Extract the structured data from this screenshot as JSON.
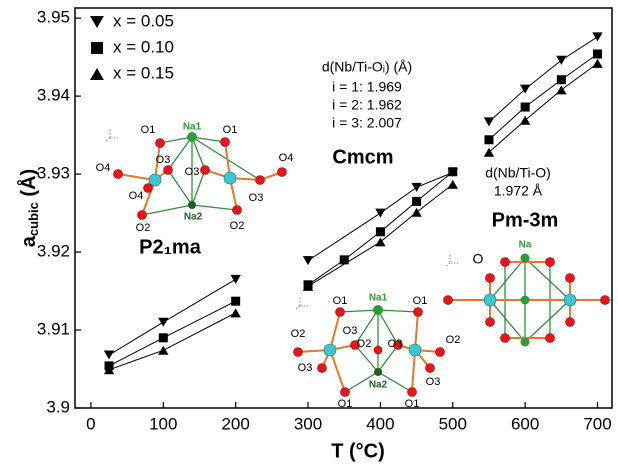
{
  "chart_data": {
    "type": "scatter",
    "xlabel": "T (°C)",
    "ylabel": [
      "a",
      "cubic",
      " (Å)"
    ],
    "x": [
      25,
      100,
      200,
      300,
      350,
      400,
      450,
      500,
      550,
      600,
      650,
      700
    ],
    "xlim": [
      -22,
      720
    ],
    "xticks": [
      0,
      100,
      200,
      300,
      400,
      500,
      600,
      700
    ],
    "ylim": [
      3.9,
      3.9513
    ],
    "yticks": [
      3.9,
      3.91,
      3.92,
      3.93,
      3.94,
      3.95
    ],
    "legend": "top-left",
    "series": [
      {
        "name": "x = 0.05",
        "marker": "triangle-down",
        "color": "#000000",
        "values": [
          3.9068,
          3.911,
          3.9165,
          3.9189,
          null,
          3.925,
          3.9283,
          3.9302,
          3.9367,
          3.9409,
          3.9446,
          3.9476
        ]
      },
      {
        "name": "x = 0.10",
        "marker": "square",
        "color": "#000000",
        "values": [
          3.9054,
          3.909,
          3.9137,
          3.9158,
          3.919,
          3.9226,
          3.9265,
          3.9303,
          3.9344,
          3.9386,
          3.9421,
          3.9454
        ]
      },
      {
        "name": "x = 0.15",
        "marker": "triangle-up",
        "color": "#000000",
        "values": [
          3.9049,
          3.9074,
          3.9122,
          3.9156,
          null,
          3.9213,
          3.9251,
          3.9287,
          3.9328,
          3.9369,
          3.9408,
          3.9442
        ]
      }
    ],
    "phases": [
      {
        "name": "P2₁ma",
        "x": [
          25,
          200
        ]
      },
      {
        "name": "Cmcm",
        "x": [
          300,
          500
        ]
      },
      {
        "name": "Pm-3m",
        "x": [
          550,
          700
        ]
      }
    ],
    "annotations": [
      "d(Nb/Ti-Oᵢ) (Å)",
      "i = 1: 1.969",
      "i = 2: 1.962",
      "i = 3: 2.007",
      "d(Nb/Ti-O)",
      "1.972 Å"
    ],
    "structures": [
      {
        "labels": [
          "O1",
          "Na1",
          "O1",
          "O4",
          "O3",
          "O4",
          "O3",
          "O4",
          "O3",
          "O2",
          "Na2",
          "O2"
        ]
      },
      {
        "labels": [
          "O1",
          "Na1",
          "O1",
          "O3",
          "O2",
          "O2",
          "O3",
          "O2",
          "O3",
          "O3",
          "Na2",
          "O1",
          "O1"
        ]
      },
      {
        "labels": [
          "O",
          "Na"
        ]
      }
    ]
  }
}
